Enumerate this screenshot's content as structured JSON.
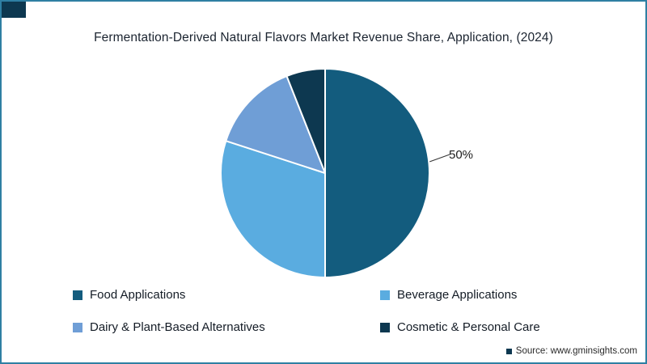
{
  "frame": {
    "border_color": "#2e7fa3",
    "corner_color": "#0d3850"
  },
  "chart_data": {
    "type": "pie",
    "title": "Fermentation-Derived Natural Flavors Market Revenue Share, Application, (2024)",
    "slices": [
      {
        "label": "Food Applications",
        "value": 50,
        "color": "#135c7e"
      },
      {
        "label": "Beverage Applications",
        "value": 30,
        "color": "#5aace0"
      },
      {
        "label": "Dairy & Plant-Based Alternatives",
        "value": 14,
        "color": "#6f9ed6"
      },
      {
        "label": "Cosmetic & Personal Care",
        "value": 6,
        "color": "#0d3850"
      }
    ],
    "percent_label": "50%",
    "labeled_slice": "Food Applications",
    "start_angle": "top",
    "direction": "clockwise",
    "legend_position": "bottom",
    "grid": false
  },
  "source": {
    "label": "Source: www.gminsights.com"
  }
}
